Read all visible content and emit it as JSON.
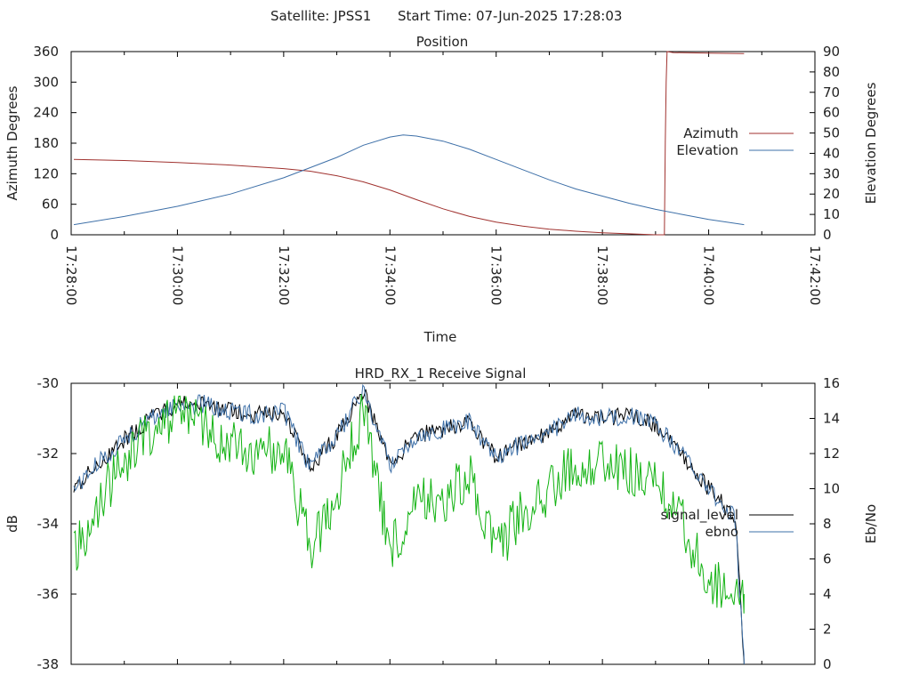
{
  "header": {
    "satellite": "Satellite: JPSS1",
    "start_time": "Start Time: 07-Jun-2025 17:28:03"
  },
  "colors": {
    "azimuth": "#a0322f",
    "elevation": "#3e70a8",
    "signal_level": "#000000",
    "ebno": "#3e70a8",
    "green_trace": "#13b313"
  },
  "chart_data": [
    {
      "type": "line",
      "title": "Position",
      "xlabel": "Time",
      "ylabel": "Azimuth Degrees",
      "y2label": "Elevation Degrees",
      "xlim": [
        "17:28:00",
        "17:42:00"
      ],
      "ylim": [
        0,
        360
      ],
      "y2lim": [
        0,
        90
      ],
      "yticks": [
        "0",
        "60",
        "120",
        "180",
        "240",
        "300",
        "360"
      ],
      "y2ticks": [
        "0",
        "10",
        "20",
        "30",
        "40",
        "50",
        "60",
        "70",
        "80",
        "90"
      ],
      "xticks": [
        "17:28:00",
        "17:30:00",
        "17:32:00",
        "17:34:00",
        "17:36:00",
        "17:38:00",
        "17:40:00",
        "17:42:00"
      ],
      "legend_position": "right",
      "series": [
        {
          "name": "Azimuth",
          "axis": "y",
          "x": [
            "17:28:03",
            "17:29:00",
            "17:30:00",
            "17:31:00",
            "17:32:00",
            "17:32:30",
            "17:33:00",
            "17:33:30",
            "17:34:00",
            "17:34:30",
            "17:35:00",
            "17:35:30",
            "17:36:00",
            "17:36:30",
            "17:37:00",
            "17:37:30",
            "17:38:00",
            "17:38:30",
            "17:39:00",
            "17:39:10",
            "17:39:11",
            "17:39:12",
            "17:39:13",
            "17:39:20",
            "17:40:00",
            "17:40:40"
          ],
          "values": [
            148,
            146,
            142,
            137,
            130,
            125,
            116,
            104,
            88,
            69,
            51,
            36,
            25,
            17,
            11,
            7,
            4,
            2,
            0,
            0,
            180,
            300,
            360,
            358,
            357,
            356
          ]
        },
        {
          "name": "Elevation",
          "axis": "y2",
          "x": [
            "17:28:03",
            "17:29:00",
            "17:30:00",
            "17:31:00",
            "17:32:00",
            "17:32:30",
            "17:33:00",
            "17:33:30",
            "17:34:00",
            "17:34:15",
            "17:34:30",
            "17:35:00",
            "17:35:30",
            "17:36:00",
            "17:36:30",
            "17:37:00",
            "17:37:30",
            "17:38:00",
            "17:38:30",
            "17:39:00",
            "17:39:30",
            "17:40:00",
            "17:40:40"
          ],
          "values": [
            5,
            9,
            14,
            20,
            28,
            33,
            38,
            44,
            48,
            49,
            48.5,
            46,
            42,
            37,
            32,
            27,
            22.5,
            19,
            15.5,
            12.5,
            10,
            7.5,
            5
          ]
        }
      ]
    },
    {
      "type": "line",
      "title": "HRD_RX_1 Receive Signal",
      "ylabel": "dB",
      "y2label": "Eb/No",
      "xlim": [
        "17:28:00",
        "17:42:00"
      ],
      "ylim": [
        -38,
        -30
      ],
      "y2lim": [
        0,
        16
      ],
      "yticks": [
        "-38",
        "-36",
        "-34",
        "-32",
        "-30"
      ],
      "y2ticks": [
        "0",
        "2",
        "4",
        "6",
        "8",
        "10",
        "12",
        "14",
        "16"
      ],
      "legend_position": "right",
      "series": [
        {
          "name": "signal_level",
          "axis": "y",
          "x": [
            "17:28:03",
            "17:28:30",
            "17:29:00",
            "17:29:30",
            "17:30:00",
            "17:30:30",
            "17:31:00",
            "17:31:30",
            "17:32:00",
            "17:32:30",
            "17:33:00",
            "17:33:30",
            "17:34:00",
            "17:34:30",
            "17:35:00",
            "17:35:30",
            "17:36:00",
            "17:36:30",
            "17:37:00",
            "17:37:30",
            "17:38:00",
            "17:38:30",
            "17:39:00",
            "17:39:30",
            "17:40:00",
            "17:40:30",
            "17:40:40"
          ],
          "values": [
            -33.0,
            -32.3,
            -31.6,
            -31.0,
            -30.6,
            -30.6,
            -30.8,
            -30.9,
            -30.8,
            -32.4,
            -31.5,
            -30.2,
            -32.3,
            -31.5,
            -31.3,
            -31.1,
            -32.1,
            -31.7,
            -31.4,
            -30.9,
            -31.0,
            -30.9,
            -31.2,
            -32.0,
            -33.0,
            -33.8,
            -38.0
          ]
        },
        {
          "name": "ebno",
          "axis": "y2",
          "x": [
            "17:28:03",
            "17:28:30",
            "17:29:00",
            "17:29:30",
            "17:30:00",
            "17:30:30",
            "17:31:00",
            "17:31:30",
            "17:32:00",
            "17:32:30",
            "17:33:00",
            "17:33:30",
            "17:34:00",
            "17:34:30",
            "17:35:00",
            "17:35:30",
            "17:36:00",
            "17:36:30",
            "17:37:00",
            "17:37:30",
            "17:38:00",
            "17:38:30",
            "17:39:00",
            "17:39:30",
            "17:40:00",
            "17:40:30",
            "17:40:40"
          ],
          "values": [
            10.0,
            11.4,
            12.8,
            14.0,
            14.8,
            14.8,
            14.4,
            14.2,
            14.4,
            11.2,
            13.0,
            15.6,
            11.4,
            13.0,
            13.4,
            13.8,
            11.8,
            12.6,
            13.2,
            14.2,
            14.0,
            14.2,
            13.6,
            12.0,
            10.0,
            8.4,
            0
          ]
        },
        {
          "name": "",
          "axis": "y2",
          "x": [
            "17:28:03",
            "17:28:30",
            "17:29:00",
            "17:29:30",
            "17:30:00",
            "17:30:30",
            "17:31:00",
            "17:31:30",
            "17:32:00",
            "17:32:30",
            "17:33:00",
            "17:33:30",
            "17:34:00",
            "17:34:30",
            "17:35:00",
            "17:35:30",
            "17:36:00",
            "17:36:30",
            "17:37:00",
            "17:37:30",
            "17:38:00",
            "17:38:30",
            "17:39:00",
            "17:39:30",
            "17:40:00",
            "17:40:30",
            "17:40:40"
          ],
          "values": [
            6.0,
            9.0,
            11.6,
            13.4,
            14.2,
            13.4,
            12.6,
            12.2,
            12.0,
            6.6,
            9.5,
            14.6,
            6.4,
            9.0,
            9.5,
            10.6,
            6.5,
            8.6,
            10.0,
            11.6,
            11.2,
            11.2,
            10.6,
            8.0,
            5.0,
            3.8,
            4.0
          ]
        }
      ]
    }
  ]
}
